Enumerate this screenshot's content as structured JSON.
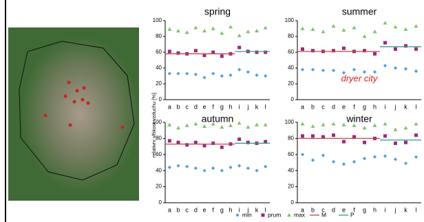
{
  "chart_data": [
    {
      "type": "scatter",
      "title": "spring",
      "ylabel": "relativni vlhkost vzduchu [%]",
      "categories": [
        "a",
        "b",
        "c",
        "d",
        "e",
        "f",
        "g",
        "h",
        "i",
        "j",
        "k",
        "l"
      ],
      "ylim": [
        0,
        100
      ],
      "yticks": [
        0,
        20,
        40,
        60,
        80,
        100
      ],
      "series": [
        {
          "name": "min",
          "color": "#4a9fd8",
          "values": [
            33,
            33,
            33,
            32,
            28,
            33,
            30,
            31,
            38,
            35,
            31,
            30
          ]
        },
        {
          "name": "prum",
          "color": "#9b2a7e",
          "values": [
            61,
            59,
            58,
            62,
            56,
            60,
            55,
            58,
            66,
            61,
            60,
            60
          ]
        },
        {
          "name": "max",
          "color": "#7cc36b",
          "values": [
            89,
            87,
            85,
            91,
            87,
            90,
            84,
            92,
            81,
            86,
            87,
            91
          ]
        },
        {
          "name": "M",
          "color": "#d04040",
          "values": [
            58,
            58,
            58,
            58,
            58,
            58,
            58,
            58,
            null,
            null,
            null,
            null
          ]
        },
        {
          "name": "P",
          "color": "#2a9d8f",
          "values": [
            null,
            null,
            null,
            null,
            null,
            null,
            null,
            null,
            61,
            61,
            61,
            61
          ]
        }
      ]
    },
    {
      "type": "scatter",
      "title": "summer",
      "annotation": "dryer city",
      "categories": [
        "a",
        "b",
        "c",
        "d",
        "e",
        "f",
        "g",
        "h",
        "i",
        "j",
        "k",
        "l"
      ],
      "ylim": [
        0,
        100
      ],
      "yticks": [
        0,
        20,
        40,
        60,
        80,
        100
      ],
      "series": [
        {
          "name": "min",
          "color": "#4a9fd8",
          "values": [
            38,
            38,
            37,
            37,
            34,
            38,
            35,
            35,
            43,
            40,
            39,
            36
          ]
        },
        {
          "name": "prum",
          "color": "#9b2a7e",
          "values": [
            64,
            62,
            61,
            62,
            65,
            61,
            62,
            58,
            72,
            64,
            68,
            64
          ]
        },
        {
          "name": "max",
          "color": "#7cc36b",
          "values": [
            90,
            89,
            86,
            93,
            88,
            91,
            80,
            86,
            97,
            92,
            89,
            93
          ]
        },
        {
          "name": "M",
          "color": "#d04040",
          "values": [
            61,
            61,
            61,
            61,
            61,
            61,
            61,
            61,
            null,
            null,
            null,
            null
          ]
        },
        {
          "name": "P",
          "color": "#2a9d8f",
          "values": [
            null,
            null,
            null,
            null,
            null,
            null,
            null,
            null,
            67,
            67,
            67,
            67
          ]
        }
      ]
    },
    {
      "type": "scatter",
      "title": "autumn",
      "categories": [
        "a",
        "b",
        "c",
        "d",
        "e",
        "f",
        "g",
        "h",
        "i",
        "j",
        "k",
        "l"
      ],
      "ylim": [
        0,
        100
      ],
      "yticks": [
        0,
        20,
        40,
        60,
        80,
        100
      ],
      "series": [
        {
          "name": "min",
          "color": "#4a9fd8",
          "values": [
            44,
            46,
            45,
            43,
            40,
            43,
            40,
            44,
            46,
            43,
            40,
            45
          ]
        },
        {
          "name": "prum",
          "color": "#9b2a7e",
          "values": [
            77,
            75,
            72,
            75,
            71,
            74,
            69,
            73,
            79,
            75,
            74,
            76
          ]
        },
        {
          "name": "max",
          "color": "#7cc36b",
          "values": [
            97,
            93,
            96,
            98,
            95,
            98,
            94,
            96,
            99,
            94,
            97,
            97
          ]
        },
        {
          "name": "M",
          "color": "#d04040",
          "values": [
            73,
            73,
            73,
            73,
            73,
            73,
            73,
            73,
            null,
            null,
            null,
            null
          ]
        },
        {
          "name": "P",
          "color": "#2a9d8f",
          "values": [
            null,
            null,
            null,
            null,
            null,
            null,
            null,
            null,
            74,
            74,
            74,
            74
          ]
        }
      ]
    },
    {
      "type": "scatter",
      "title": "winter",
      "categories": [
        "a",
        "b",
        "c",
        "d",
        "e",
        "f",
        "g",
        "h",
        "i",
        "j",
        "k",
        "l"
      ],
      "ylim": [
        0,
        100
      ],
      "yticks": [
        0,
        20,
        40,
        60,
        80,
        100
      ],
      "series": [
        {
          "name": "min",
          "color": "#4a9fd8",
          "values": [
            60,
            53,
            59,
            51,
            48,
            51,
            55,
            57,
            58,
            54,
            49,
            57
          ]
        },
        {
          "name": "prum",
          "color": "#9b2a7e",
          "values": [
            83,
            83,
            82,
            84,
            76,
            82,
            75,
            80,
            83,
            74,
            75,
            84
          ]
        },
        {
          "name": "max",
          "color": "#7cc36b",
          "values": [
            98,
            95,
            97,
            98,
            97,
            96,
            93,
            96,
            98,
            91,
            93,
            98
          ]
        },
        {
          "name": "M",
          "color": "#d04040",
          "values": [
            80,
            80,
            80,
            80,
            80,
            80,
            80,
            80,
            null,
            null,
            null,
            null
          ]
        },
        {
          "name": "P",
          "color": "#2a9d8f",
          "values": [
            null,
            null,
            null,
            null,
            null,
            null,
            null,
            null,
            78,
            78,
            78,
            78
          ]
        }
      ]
    }
  ]
}
